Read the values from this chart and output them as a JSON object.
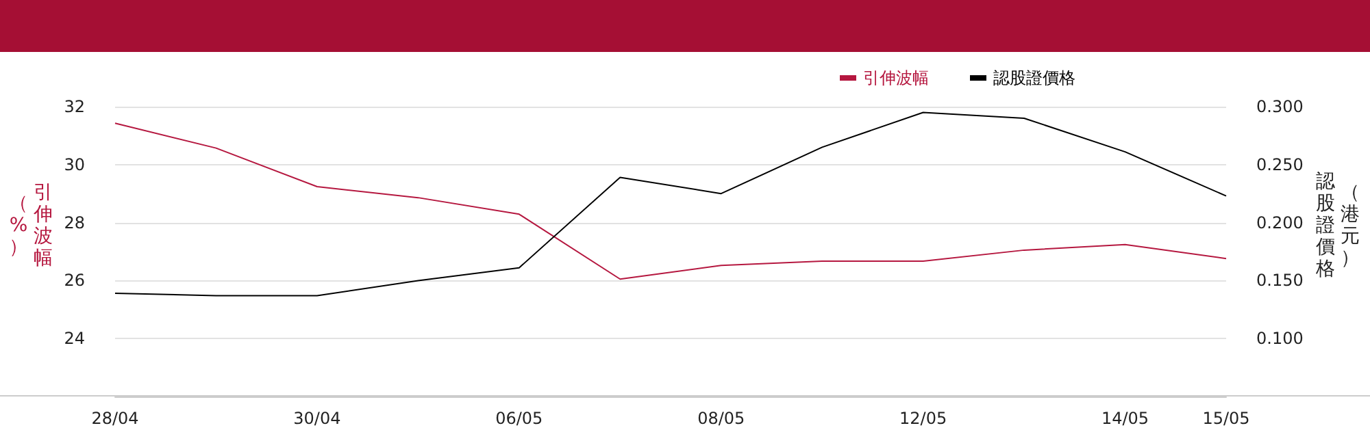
{
  "chart_data": {
    "type": "line",
    "categories": [
      "28/04",
      null,
      "30/04",
      null,
      "06/05",
      null,
      "08/05",
      null,
      "12/05",
      null,
      "14/05",
      "15/05"
    ],
    "series": [
      {
        "name": "引伸波幅",
        "color": "#b5173f",
        "values": [
          31.43,
          30.57,
          29.24,
          28.86,
          28.29,
          26.05,
          26.52,
          26.67,
          26.67,
          27.05,
          27.24,
          26.76
        ]
      },
      {
        "name": "認股證價格",
        "color": "#000000",
        "axis": "y2",
        "values": [
          0.139,
          0.137,
          0.137,
          0.15,
          0.161,
          0.239,
          0.225,
          0.265,
          0.295,
          0.29,
          0.261,
          0.223
        ]
      }
    ],
    "ylabel": "引伸波幅（%）",
    "y2label": "認股證價格（港元）",
    "ylim": [
      22,
      32
    ],
    "yticks": [
      24,
      26,
      28,
      30,
      32
    ],
    "y2lim": [
      0.05,
      0.3
    ],
    "y2ticks": [
      {
        "value": 0.1,
        "label": "0.100"
      },
      {
        "value": 0.15,
        "label": "0.150"
      },
      {
        "value": 0.2,
        "label": "0.200"
      },
      {
        "value": 0.25,
        "label": "0.250"
      },
      {
        "value": 0.3,
        "label": "0.300"
      }
    ],
    "grid": "y",
    "legend": "top right",
    "marker": "none",
    "line_style": "solid"
  }
}
